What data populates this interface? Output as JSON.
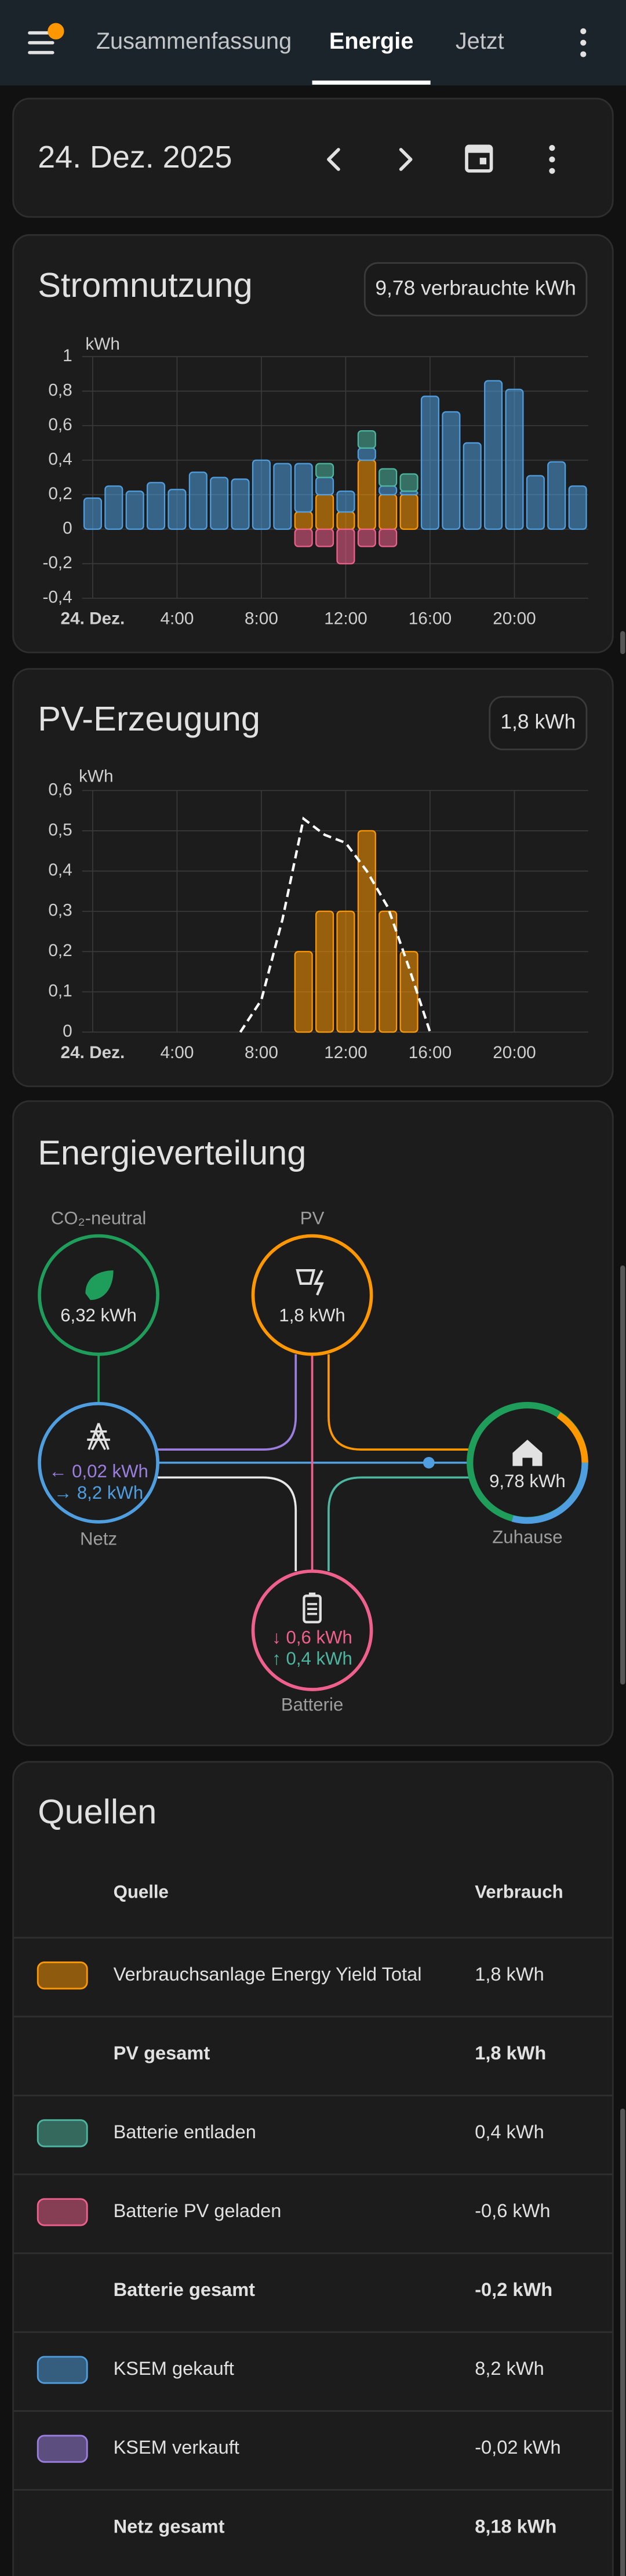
{
  "header": {
    "tabs": [
      "Zusammenfassung",
      "Energie",
      "Jetzt"
    ],
    "active_tab": 1
  },
  "date_card": {
    "date": "24. Dez. 2025"
  },
  "chart_data": [
    {
      "type": "bar",
      "title": "Stromnutzung",
      "badge": "9,78 verbrauchte kWh",
      "y_label": "kWh",
      "stacked": true,
      "grid": true,
      "x": [
        0,
        1,
        2,
        3,
        4,
        5,
        6,
        7,
        8,
        9,
        10,
        11,
        12,
        13,
        14,
        15,
        16,
        17,
        18,
        19,
        20,
        21,
        22,
        23
      ],
      "xlim": [
        -0.5,
        23.5
      ],
      "xticks": [
        {
          "value": 0,
          "label": "24. Dez."
        },
        {
          "value": 4,
          "label": "4:00"
        },
        {
          "value": 8,
          "label": "8:00"
        },
        {
          "value": 12,
          "label": "12:00"
        },
        {
          "value": 16,
          "label": "16:00"
        },
        {
          "value": 20,
          "label": "20:00"
        }
      ],
      "ylim": [
        -0.4,
        1
      ],
      "yticks": [
        {
          "value": -0.4,
          "label": "-0,4"
        },
        {
          "value": -0.2,
          "label": "-0,2"
        },
        0,
        {
          "value": 0.2,
          "label": "0,2"
        },
        {
          "value": 0.4,
          "label": "0,4"
        },
        {
          "value": 0.6,
          "label": "0,6"
        },
        {
          "value": 0.8,
          "label": "0,8"
        },
        1
      ],
      "series": [
        {
          "type": "bar",
          "color": "#ff9800",
          "values": [
            null,
            null,
            null,
            null,
            null,
            null,
            null,
            null,
            null,
            null,
            0.1,
            0.2,
            0.1,
            0.4,
            0.2,
            0.2,
            null,
            null,
            null,
            null,
            null,
            null,
            null,
            null
          ]
        },
        {
          "type": "bar",
          "color": "#4e9ee0",
          "values": [
            0.18,
            0.25,
            0.22,
            0.27,
            0.23,
            0.33,
            0.3,
            0.29,
            0.4,
            0.38,
            0.28,
            0.1,
            0.12,
            0.07,
            0.05,
            0.02,
            0.77,
            0.68,
            0.5,
            0.86,
            0.81,
            0.31,
            0.39,
            0.25
          ]
        },
        {
          "type": "bar",
          "color": "#4db6a0",
          "values": [
            null,
            null,
            null,
            null,
            null,
            null,
            null,
            null,
            null,
            null,
            null,
            0.08,
            null,
            0.1,
            0.1,
            0.1,
            null,
            null,
            null,
            null,
            null,
            null,
            null,
            null
          ]
        },
        {
          "type": "bar",
          "color": "#f0608c",
          "values": [
            null,
            null,
            null,
            null,
            null,
            null,
            null,
            null,
            null,
            null,
            -0.1,
            -0.1,
            -0.2,
            -0.1,
            -0.1,
            null,
            null,
            null,
            null,
            null,
            null,
            null,
            null,
            null
          ]
        }
      ]
    },
    {
      "type": "bar",
      "title": "PV-Erzeugung",
      "badge": "1,8 kWh",
      "y_label": "kWh",
      "stacked": true,
      "grid": true,
      "xlim": [
        -0.5,
        23.5
      ],
      "xticks": [
        {
          "value": 0,
          "label": "24. Dez."
        },
        {
          "value": 4,
          "label": "4:00"
        },
        {
          "value": 8,
          "label": "8:00"
        },
        {
          "value": 12,
          "label": "12:00"
        },
        {
          "value": 16,
          "label": "16:00"
        },
        {
          "value": 20,
          "label": "20:00"
        }
      ],
      "ylim": [
        0,
        0.6
      ],
      "yticks": [
        0,
        {
          "value": 0.1,
          "label": "0,1"
        },
        {
          "value": 0.2,
          "label": "0,2"
        },
        {
          "value": 0.3,
          "label": "0,3"
        },
        {
          "value": 0.4,
          "label": "0,4"
        },
        {
          "value": 0.5,
          "label": "0,5"
        },
        {
          "value": 0.6,
          "label": "0,6"
        }
      ],
      "series": [
        {
          "type": "bar",
          "color": "#ff9800",
          "x": [
            10,
            11,
            12,
            13,
            14,
            15
          ],
          "values": [
            0.2,
            0.3,
            0.3,
            0.5,
            0.3,
            0.2
          ]
        },
        {
          "type": "line",
          "color": "#ffffff",
          "dashed": true,
          "x": [
            7,
            8,
            9,
            10,
            11,
            12,
            13,
            14,
            15,
            16
          ],
          "values": [
            0,
            0.08,
            0.28,
            0.53,
            0.49,
            0.47,
            0.4,
            0.31,
            0.16,
            0
          ]
        }
      ]
    }
  ],
  "distribution": {
    "title": "Energieverteilung",
    "co2": {
      "label": "CO₂-neutral",
      "value": "6,32 kWh"
    },
    "pv": {
      "label": "PV",
      "value": "1,8 kWh"
    },
    "grid": {
      "label": "Netz",
      "returned": "← 0,02 kWh",
      "consumed": "→ 8,2 kWh"
    },
    "home": {
      "label": "Zuhause",
      "value": "9,78 kWh"
    },
    "battery": {
      "label": "Batterie",
      "charged": "↓ 0,6 kWh",
      "discharged": "↑ 0,4 kWh"
    }
  },
  "sources": {
    "title": "Quellen",
    "columns": [
      "Quelle",
      "Verbrauch"
    ],
    "rows": [
      {
        "color": "#ff9800",
        "name": "Verbrauchsanlage Energy Yield Total",
        "value": "1,8 kWh",
        "bold": false
      },
      {
        "name": "PV gesamt",
        "value": "1,8 kWh",
        "bold": true
      },
      {
        "color": "#4db6a0",
        "name": "Batterie entladen",
        "value": "0,4 kWh",
        "bold": false
      },
      {
        "color": "#f0608c",
        "name": "Batterie PV geladen",
        "value": "-0,6 kWh",
        "bold": false
      },
      {
        "name": "Batterie gesamt",
        "value": "-0,2 kWh",
        "bold": true
      },
      {
        "color": "#4e9ee0",
        "name": "KSEM gekauft",
        "value": "8,2 kWh",
        "bold": false
      },
      {
        "color": "#9b7fe0",
        "name": "KSEM verkauft",
        "value": "-0,02 kWh",
        "bold": false
      },
      {
        "name": "Netz gesamt",
        "value": "8,18 kWh",
        "bold": true
      }
    ]
  }
}
